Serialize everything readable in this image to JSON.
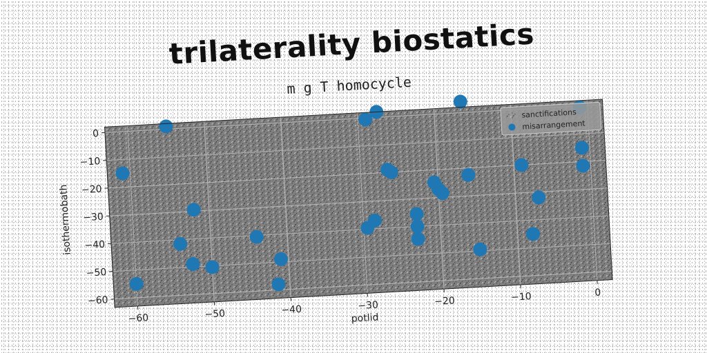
{
  "chart_data": {
    "type": "scatter",
    "title": "trilaterality biostatics",
    "subtitle": "m g T homocycle",
    "xlabel": "potlid",
    "ylabel": "isothermobath",
    "xlim": [
      -63,
      2
    ],
    "ylim": [
      -63,
      2
    ],
    "xticks": [
      -60,
      -50,
      -40,
      -30,
      -20,
      -10,
      0
    ],
    "yticks": [
      0,
      -10,
      -20,
      -30,
      -40,
      -50,
      -60
    ],
    "grid": true,
    "legend_position": "top-right",
    "background_color": "#808080",
    "series": [
      {
        "name": "sanctifications",
        "marker": "noise",
        "color": "#222222",
        "points": []
      },
      {
        "name": "misarrangement",
        "marker": "circle",
        "color": "#1f77b4",
        "points": [
          [
            -55.0,
            1.0
          ],
          [
            -61.0,
            -15.0
          ],
          [
            -52.0,
            -29.5
          ],
          [
            -54.0,
            -41.5
          ],
          [
            -52.5,
            -49.0
          ],
          [
            -50.0,
            -50.5
          ],
          [
            -60.0,
            -55.0
          ],
          [
            -44.0,
            -40.5
          ],
          [
            -41.0,
            -49.0
          ],
          [
            -41.5,
            -58.0
          ],
          [
            -29.0,
            -0.5
          ],
          [
            -27.5,
            2.0
          ],
          [
            -26.5,
            -19.0
          ],
          [
            -26.0,
            -20.0
          ],
          [
            -28.5,
            -37.0
          ],
          [
            -29.5,
            -39.5
          ],
          [
            -23.0,
            -35.5
          ],
          [
            -23.0,
            -40.0
          ],
          [
            -23.0,
            -44.5
          ],
          [
            -20.5,
            -24.5
          ],
          [
            -20.0,
            -27.0
          ],
          [
            -19.5,
            -28.5
          ],
          [
            -16.0,
            -22.5
          ],
          [
            -15.0,
            -49.5
          ],
          [
            -16.5,
            4.0
          ],
          [
            -9.0,
            -20.0
          ],
          [
            -7.0,
            -32.0
          ],
          [
            -8.0,
            -45.0
          ],
          [
            -1.0,
            -0.5
          ],
          [
            -1.0,
            -15.0
          ],
          [
            -1.0,
            -21.5
          ]
        ]
      }
    ]
  }
}
